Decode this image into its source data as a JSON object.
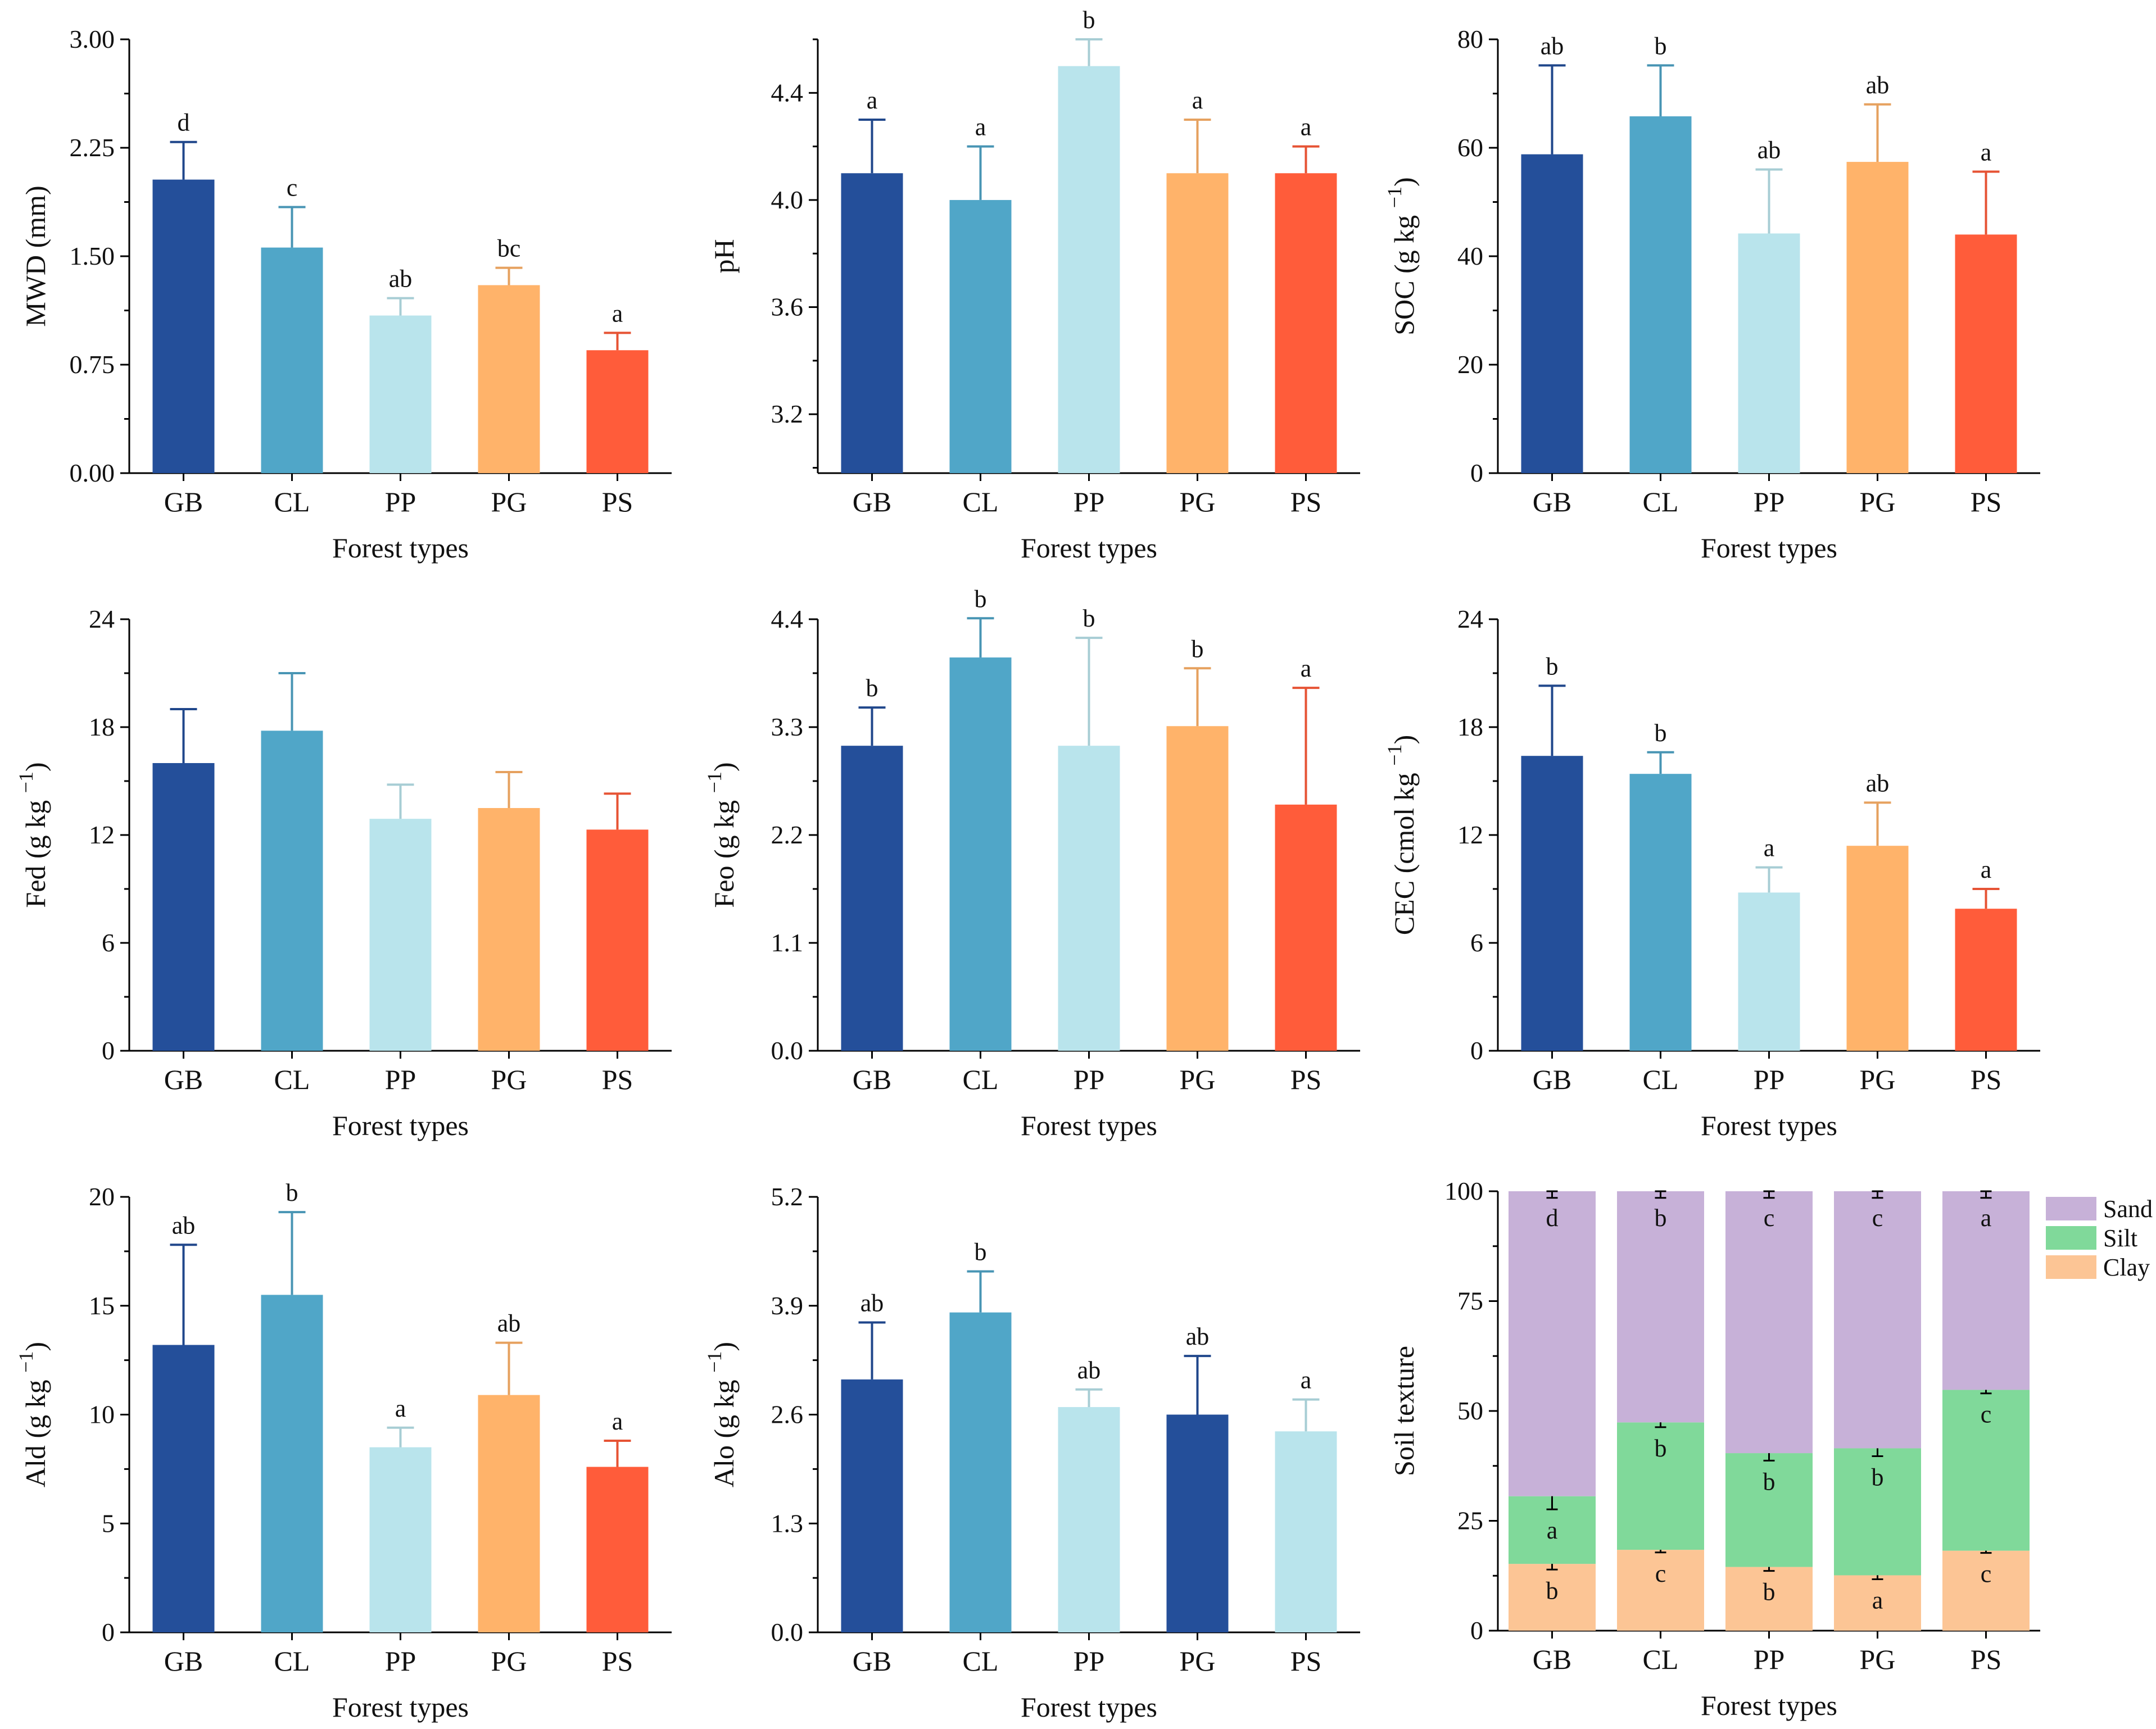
{
  "figure": {
    "x_axis_label": "Forest types",
    "categories": [
      "GB",
      "CL",
      "PP",
      "PG",
      "PS"
    ]
  },
  "colors": {
    "GB": "#244F9A",
    "CL": "#50A6C8",
    "PP": "#B9E4EC",
    "PG": "#FFB36A",
    "PS": "#FF5C3A",
    "sand": "#C7B1D8",
    "silt": "#80D99A",
    "clay": "#FCC595"
  },
  "chart_data": [
    {
      "type": "bar",
      "ylabel": "MWD (mm)",
      "xlabel": "Forest types",
      "categories": [
        "GB",
        "CL",
        "PP",
        "PG",
        "PS"
      ],
      "ylim": [
        0,
        3.0
      ],
      "yticks": [
        "0.00",
        "0.75",
        "1.50",
        "2.25",
        "3.00"
      ],
      "values": [
        2.03,
        1.56,
        1.09,
        1.3,
        0.85
      ],
      "errors": [
        0.26,
        0.28,
        0.12,
        0.12,
        0.12
      ],
      "letters": [
        "d",
        "c",
        "ab",
        "bc",
        "a"
      ],
      "bar_colors": [
        "GB",
        "CL",
        "PP",
        "PG",
        "PS"
      ]
    },
    {
      "type": "bar",
      "ylabel": "pH",
      "xlabel": "Forest types",
      "categories": [
        "GB",
        "CL",
        "PP",
        "PG",
        "PS"
      ],
      "ylim": [
        2.98,
        4.6
      ],
      "yticks": [
        "3.2",
        "3.6",
        "4.0",
        "4.4"
      ],
      "values": [
        4.1,
        4.0,
        4.5,
        4.1,
        4.1
      ],
      "errors": [
        0.2,
        0.2,
        0.1,
        0.2,
        0.1
      ],
      "letters": [
        "a",
        "a",
        "b",
        "a",
        "a"
      ],
      "bar_colors": [
        "GB",
        "CL",
        "PP",
        "PG",
        "PS"
      ]
    },
    {
      "type": "bar",
      "ylabel": "SOC (g kg",
      "ylabel_sup": "−1",
      "ylabel_end": ")",
      "xlabel": "Forest types",
      "categories": [
        "GB",
        "CL",
        "PP",
        "PG",
        "PS"
      ],
      "ylim": [
        0,
        80
      ],
      "yticks": [
        "0",
        "20",
        "40",
        "60",
        "80"
      ],
      "values": [
        58.8,
        65.8,
        44.2,
        57.4,
        44.0
      ],
      "errors": [
        16.4,
        9.4,
        11.8,
        10.6,
        11.6
      ],
      "letters": [
        "ab",
        "b",
        "ab",
        "ab",
        "a"
      ],
      "bar_colors": [
        "GB",
        "CL",
        "PP",
        "PG",
        "PS"
      ]
    },
    {
      "type": "bar",
      "ylabel": "Fed (g kg",
      "ylabel_sup": "−1",
      "ylabel_end": ")",
      "xlabel": "Forest types",
      "categories": [
        "GB",
        "CL",
        "PP",
        "PG",
        "PS"
      ],
      "ylim": [
        0,
        24
      ],
      "yticks": [
        "0",
        "6",
        "12",
        "18",
        "24"
      ],
      "values": [
        16.0,
        17.8,
        12.9,
        13.5,
        12.3
      ],
      "errors": [
        3.0,
        3.2,
        1.9,
        2.0,
        2.0
      ],
      "letters": [
        "",
        "",
        "",
        "",
        ""
      ],
      "bar_colors": [
        "GB",
        "CL",
        "PP",
        "PG",
        "PS"
      ]
    },
    {
      "type": "bar",
      "ylabel": "Feo (g kg",
      "ylabel_sup": "−1",
      "ylabel_end": ")",
      "xlabel": "Forest types",
      "categories": [
        "GB",
        "CL",
        "PP",
        "PG",
        "PS"
      ],
      "ylim": [
        0,
        4.4
      ],
      "yticks": [
        "0.0",
        "1.1",
        "2.2",
        "3.3",
        "4.4"
      ],
      "values": [
        3.11,
        4.01,
        3.11,
        3.31,
        2.51
      ],
      "errors": [
        0.39,
        0.4,
        1.1,
        0.59,
        1.19
      ],
      "letters": [
        "b",
        "b",
        "b",
        "b",
        "a"
      ],
      "bar_colors": [
        "GB",
        "CL",
        "PP",
        "PG",
        "PS"
      ]
    },
    {
      "type": "bar",
      "ylabel": "CEC (cmol kg",
      "ylabel_sup": "−1",
      "ylabel_end": ")",
      "xlabel": "Forest types",
      "categories": [
        "GB",
        "CL",
        "PP",
        "PG",
        "PS"
      ],
      "ylim": [
        0,
        24
      ],
      "yticks": [
        "0",
        "6",
        "12",
        "18",
        "24"
      ],
      "values": [
        16.4,
        15.4,
        8.8,
        11.4,
        7.9
      ],
      "errors": [
        3.9,
        1.2,
        1.4,
        2.4,
        1.1
      ],
      "letters": [
        "b",
        "b",
        "a",
        "ab",
        "a"
      ],
      "bar_colors": [
        "GB",
        "CL",
        "PP",
        "PG",
        "PS"
      ]
    },
    {
      "type": "bar",
      "ylabel": "Ald (g kg",
      "ylabel_sup": "−1",
      "ylabel_end": ")",
      "xlabel": "Forest types",
      "categories": [
        "GB",
        "CL",
        "PP",
        "PG",
        "PS"
      ],
      "ylim": [
        0,
        20
      ],
      "yticks": [
        "0",
        "5",
        "10",
        "15",
        "20"
      ],
      "values": [
        13.2,
        15.5,
        8.5,
        10.9,
        7.6
      ],
      "errors": [
        4.6,
        3.8,
        0.9,
        2.4,
        1.2
      ],
      "letters": [
        "ab",
        "b",
        "a",
        "ab",
        "a"
      ],
      "bar_colors": [
        "GB",
        "CL",
        "PP",
        "PG",
        "PS"
      ]
    },
    {
      "type": "bar",
      "ylabel": "Alo (g kg",
      "ylabel_sup": "−1",
      "ylabel_end": ")",
      "xlabel": "Forest types",
      "categories": [
        "GB",
        "CL",
        "PP",
        "PG",
        "PS"
      ],
      "ylim": [
        0,
        5.2
      ],
      "yticks": [
        "0.0",
        "1.3",
        "2.6",
        "3.9",
        "5.2"
      ],
      "values": [
        3.02,
        3.82,
        2.69,
        2.6,
        2.4
      ],
      "errors": [
        0.68,
        0.49,
        0.21,
        0.7,
        0.38
      ],
      "letters": [
        "ab",
        "b",
        "ab",
        "ab",
        "a"
      ],
      "bar_colors": [
        "GB",
        "CL",
        "PP",
        "GB",
        "PP"
      ]
    },
    {
      "type": "stacked-bar",
      "ylabel": "Soil texture",
      "xlabel": "Forest types",
      "categories": [
        "GB",
        "CL",
        "PP",
        "PG",
        "PS"
      ],
      "ylim": [
        0,
        100
      ],
      "yticks": [
        "0",
        "25",
        "50",
        "75",
        "100"
      ],
      "legend": [
        "Sand",
        "Silt",
        "Clay"
      ],
      "legend_position": "top-right",
      "series": [
        {
          "name": "Clay",
          "color": "clay",
          "values": [
            15.2,
            18.4,
            14.5,
            12.6,
            18.2
          ],
          "errors": [
            1.3,
            0.6,
            0.9,
            0.9,
            0.5
          ],
          "letters": [
            "b",
            "c",
            "b",
            "a",
            "c"
          ]
        },
        {
          "name": "Silt",
          "color": "silt",
          "values": [
            15.4,
            29.0,
            25.9,
            28.9,
            36.6
          ],
          "errors": [
            3.0,
            1.1,
            1.7,
            1.8,
            0.8
          ],
          "letters": [
            "a",
            "b",
            "b",
            "b",
            "c"
          ]
        },
        {
          "name": "Sand",
          "color": "sand",
          "values": [
            69.4,
            52.6,
            59.6,
            58.5,
            45.2
          ],
          "errors": [
            1.5,
            1.5,
            1.5,
            1.5,
            1.5
          ],
          "letters": [
            "d",
            "b",
            "c",
            "c",
            "a"
          ]
        }
      ]
    }
  ]
}
